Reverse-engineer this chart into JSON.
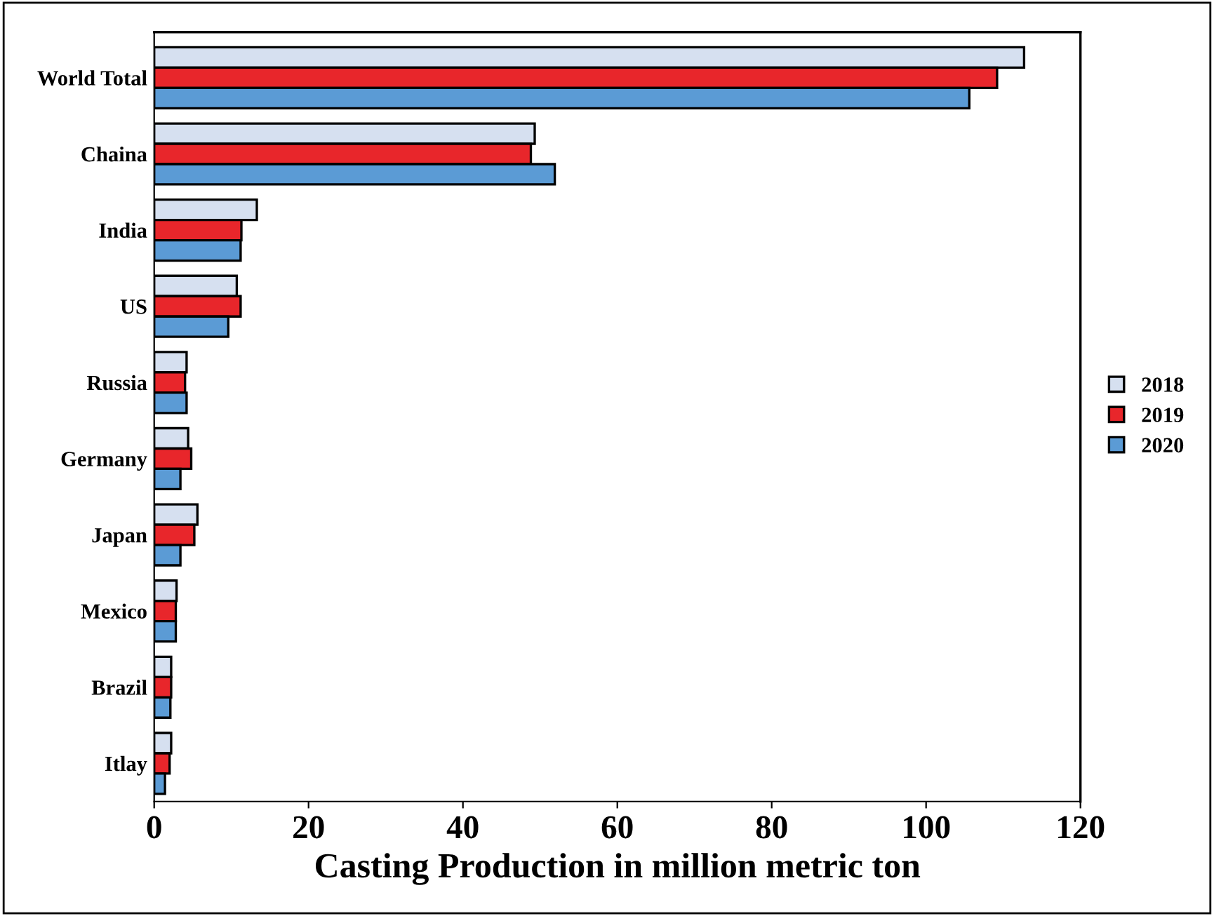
{
  "chart_data": {
    "type": "bar",
    "orientation": "horizontal",
    "xlabel": "Casting Production in million metric ton",
    "categories": [
      "World Total",
      "Chaina",
      "India",
      "US",
      "Russia",
      "Germany",
      "Japan",
      "Mexico",
      "Brazil",
      "Itlay"
    ],
    "series": [
      {
        "name": "2018",
        "color": "#d6e0f0",
        "values": [
          112.7,
          49.3,
          13.3,
          10.7,
          4.2,
          4.4,
          5.6,
          2.9,
          2.2,
          2.2
        ]
      },
      {
        "name": "2019",
        "color": "#e8262b",
        "values": [
          109.2,
          48.8,
          11.3,
          11.2,
          4.0,
          4.8,
          5.2,
          2.8,
          2.2,
          2.0
        ]
      },
      {
        "name": "2020",
        "color": "#5b9bd5",
        "values": [
          105.6,
          51.9,
          11.2,
          9.6,
          4.2,
          3.4,
          3.4,
          2.8,
          2.1,
          1.4
        ]
      }
    ],
    "xlim": [
      0,
      120
    ],
    "xticks": [
      0,
      20,
      40,
      60,
      80,
      100,
      120
    ],
    "grid": false,
    "legend": "right"
  }
}
